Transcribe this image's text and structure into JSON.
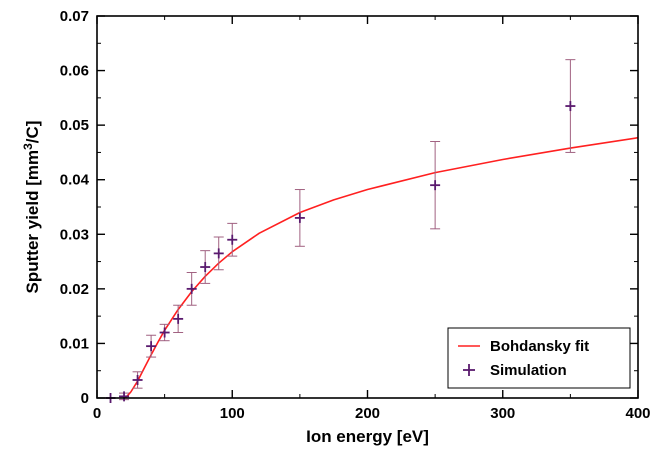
{
  "chart_data": {
    "type": "scatter",
    "title": "",
    "xlabel": "Ion energy [eV]",
    "ylabel_parts": {
      "pre": "Sputter yield [mm",
      "sup": "3",
      "post": "/C]"
    },
    "xlim": [
      0,
      400
    ],
    "ylim": [
      0,
      0.07
    ],
    "xticks": [
      0,
      100,
      200,
      300,
      400
    ],
    "xtick_labels": [
      "0",
      "100",
      "200",
      "300",
      "400"
    ],
    "yticks": [
      0,
      0.01,
      0.02,
      0.03,
      0.04,
      0.05,
      0.06,
      0.07
    ],
    "ytick_labels": [
      "0",
      "0.01",
      "0.02",
      "0.03",
      "0.04",
      "0.05",
      "0.06",
      "0.07"
    ],
    "grid": false,
    "legend_position": "bottom-right",
    "colors": {
      "fit": "#ff2020",
      "simulation": "#5a1a6e",
      "errorbar": "#a06080"
    },
    "series": [
      {
        "name": "Bohdansky fit",
        "kind": "line",
        "x": [
          20,
          22,
          25,
          30,
          35,
          40,
          45,
          50,
          60,
          70,
          80,
          90,
          100,
          120,
          150,
          175,
          200,
          250,
          300,
          350,
          400
        ],
        "y": [
          0.0,
          0.0003,
          0.0011,
          0.0031,
          0.0055,
          0.0079,
          0.0102,
          0.0124,
          0.0162,
          0.0195,
          0.0223,
          0.0247,
          0.0268,
          0.0302,
          0.034,
          0.0363,
          0.0382,
          0.0413,
          0.0437,
          0.0458,
          0.0477
        ]
      },
      {
        "name": "Simulation",
        "kind": "scatter",
        "x": [
          10,
          20,
          30,
          40,
          50,
          60,
          70,
          80,
          90,
          100,
          150,
          250,
          350
        ],
        "y": [
          0.0,
          0.0003,
          0.0033,
          0.0095,
          0.012,
          0.0145,
          0.02,
          0.024,
          0.0265,
          0.029,
          0.033,
          0.039,
          0.0535
        ],
        "err": [
          0.0,
          0.0006,
          0.0015,
          0.002,
          0.0015,
          0.0025,
          0.003,
          0.003,
          0.003,
          0.003,
          0.0052,
          0.008,
          0.0085
        ]
      }
    ]
  }
}
